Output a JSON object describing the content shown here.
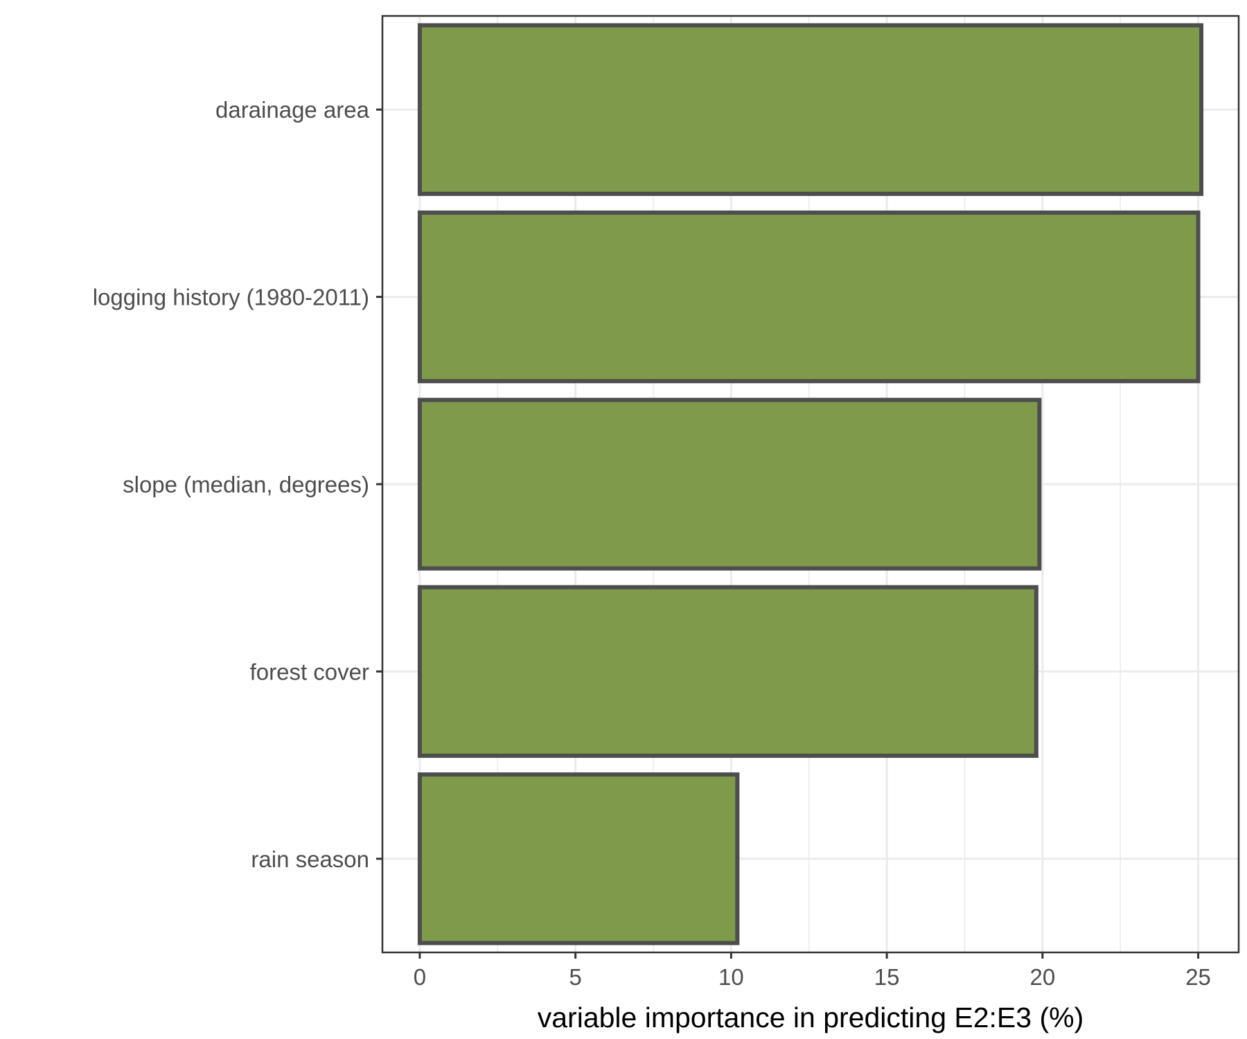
{
  "chart_data": {
    "type": "bar",
    "orientation": "horizontal",
    "title": "",
    "xlabel": "variable importance in predicting E2:E3 (%)",
    "ylabel": "",
    "categories": [
      "darainage area",
      "logging history (1980-2011)",
      "slope (median, degrees)",
      "forest cover",
      "rain season"
    ],
    "values": [
      25.1,
      25.0,
      19.9,
      19.8,
      10.2
    ],
    "xlim": [
      -1.2,
      26.3
    ],
    "xticks": [
      0,
      5,
      10,
      15,
      20,
      25
    ],
    "grid": true,
    "legend": "none",
    "colors": {
      "bar_fill": "#7f9a4b",
      "bar_stroke": "#4d4d4d",
      "grid": "#ebebeb",
      "panel_border": "#333333",
      "text": "#4d4d4d"
    }
  }
}
